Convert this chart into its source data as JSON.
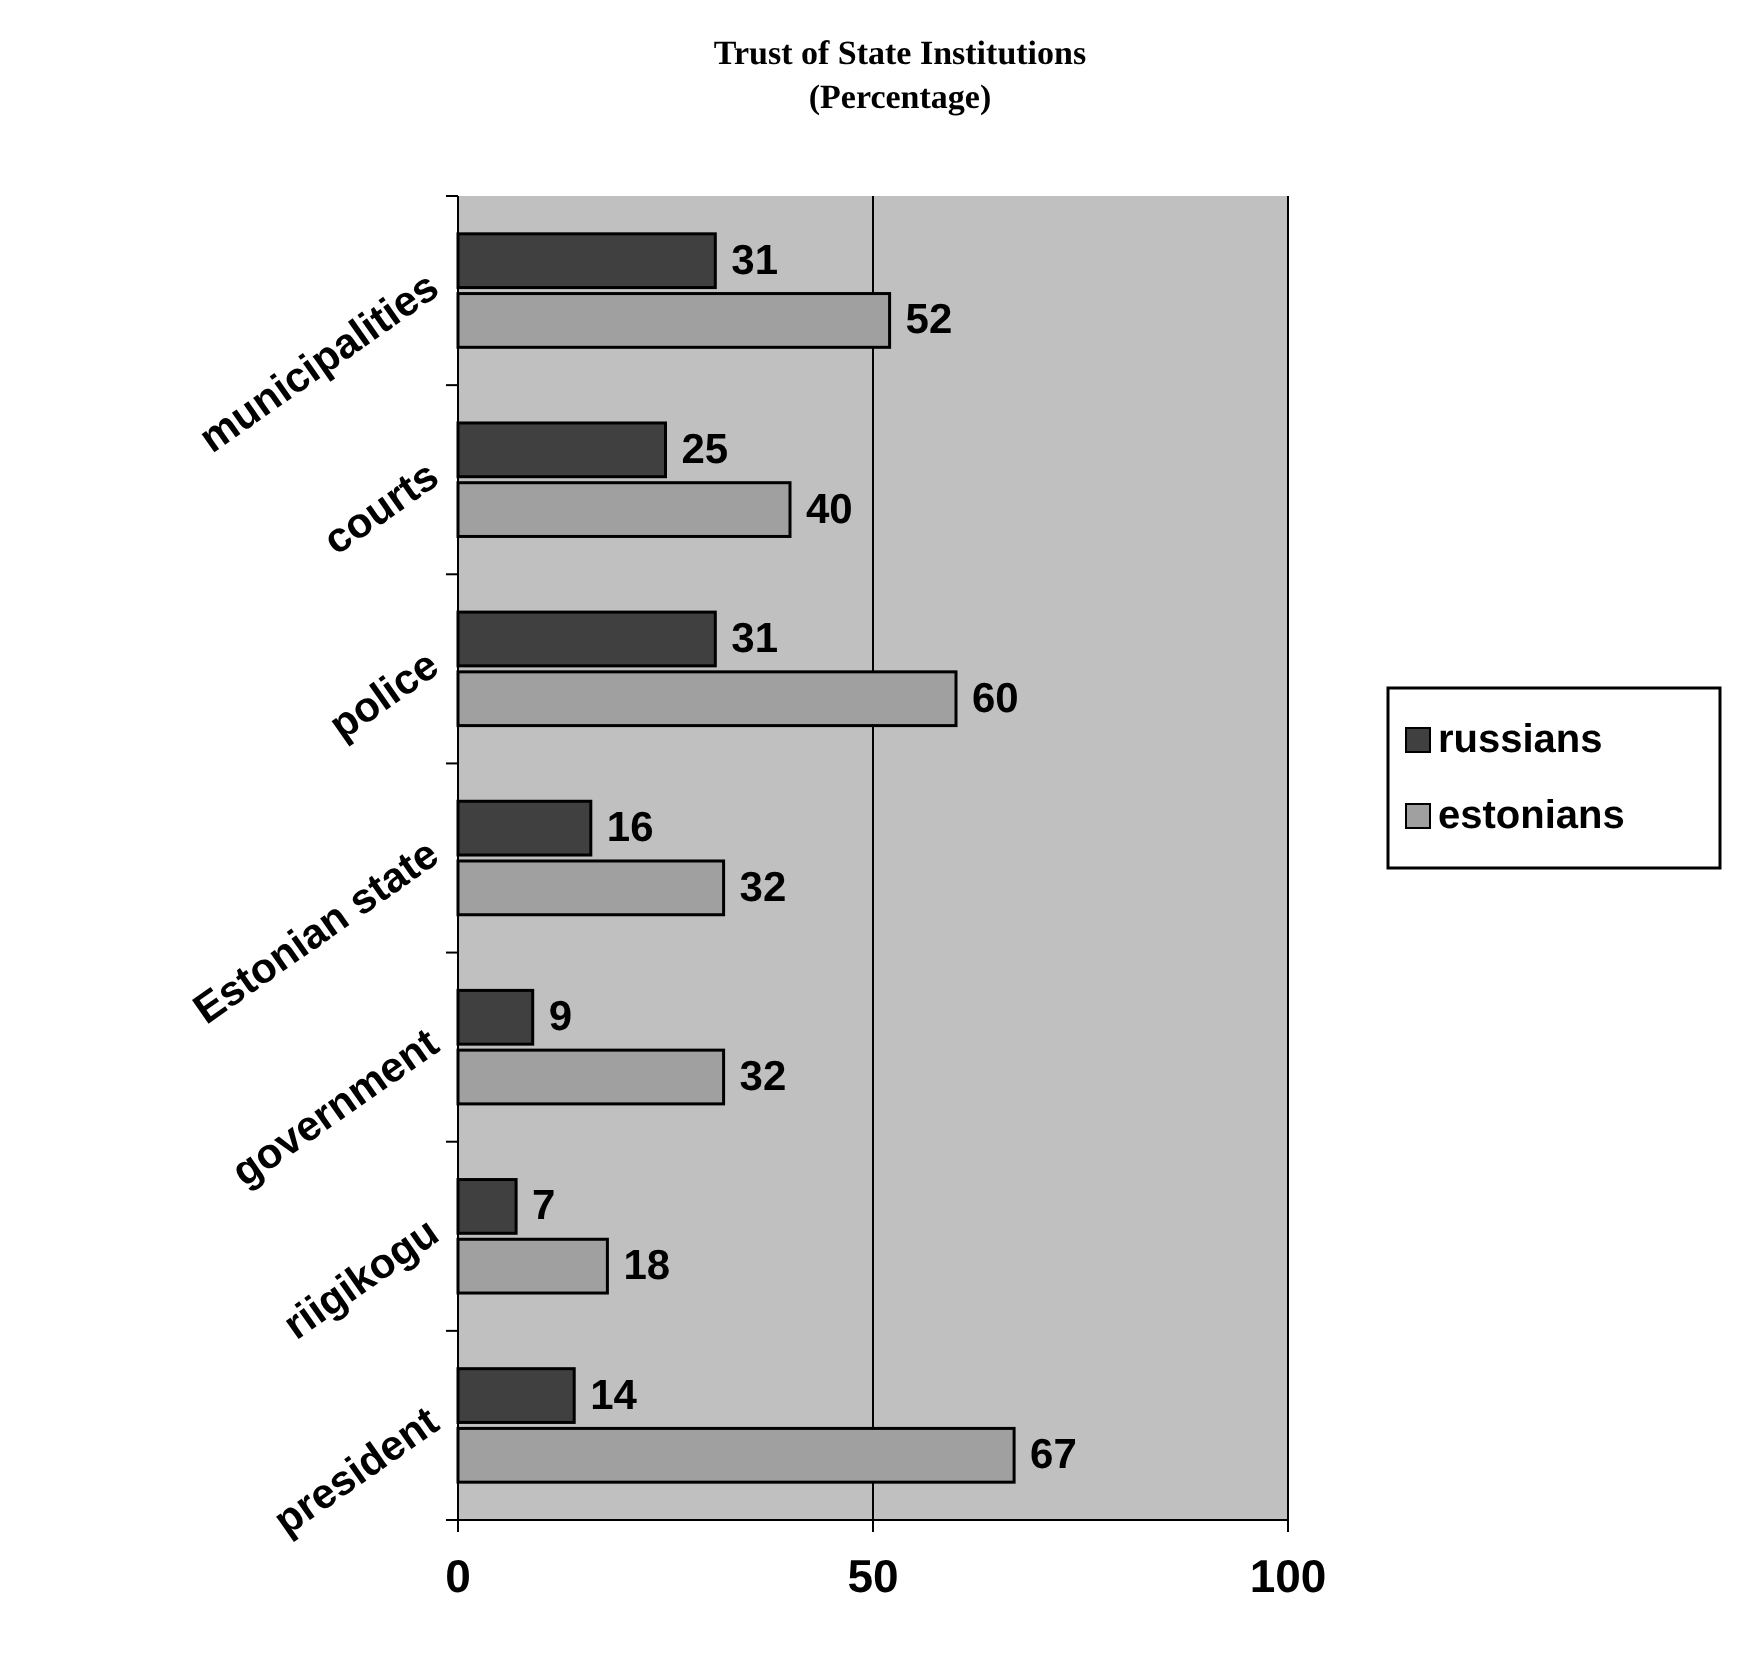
{
  "chart_data": {
    "type": "bar",
    "orientation": "horizontal",
    "title": "Trust of State Institutions",
    "subtitle": "(Percentage)",
    "categories": [
      "municipalities",
      "courts",
      "police",
      "Estonian state",
      "government",
      "riigikogu",
      "president"
    ],
    "series": [
      {
        "name": "russians",
        "color": "#404040",
        "values": [
          31,
          25,
          31,
          16,
          9,
          7,
          14
        ]
      },
      {
        "name": "estonians",
        "color": "#a0a0a0",
        "values": [
          52,
          40,
          60,
          32,
          32,
          18,
          67
        ]
      }
    ],
    "xlim": [
      0,
      100
    ],
    "xticks": [
      0,
      50,
      100
    ],
    "grid": "x",
    "legend": "right",
    "data_labels": true
  }
}
